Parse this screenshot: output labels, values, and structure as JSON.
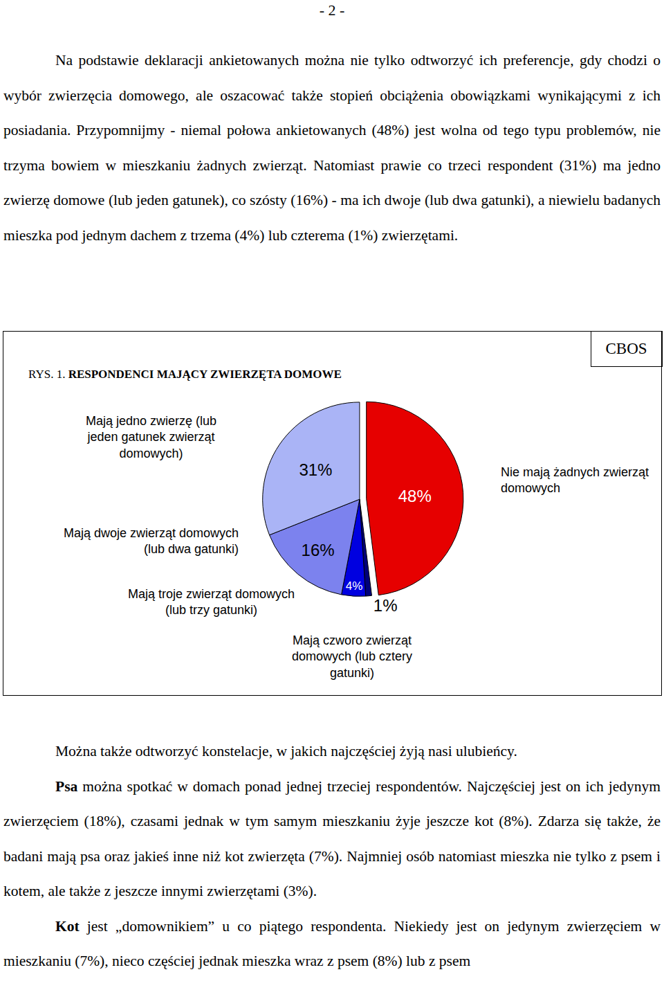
{
  "header": {
    "page_number": "- 2 -"
  },
  "text_before": [
    [
      {
        "text": "Na podstawie deklaracji ankietowanych można nie tylko odtworzyć ich preferencje, gdy chodzi o wybór zwierzęcia domowego, ale oszacować także stopień obciążenia obowiązkami wynikającymi z ich posiadania. Przypomnijmy - niemal połowa ankietowanych (48%) jest wolna od tego typu problemów, nie trzyma bowiem w mieszkaniu żadnych zwierząt. Natomiast prawie co trzeci respondent (31%) ma jedno zwierzę domowe (lub jeden gatunek), co szósty (16%) - ma ich dwoje (lub dwa gatunki), a niewielu badanych mieszka pod jednym dachem z trzema (4%) lub czterema (1%) zwierzętami.",
        "bold": false
      }
    ]
  ],
  "figure": {
    "source": "CBOS",
    "label": "RYS. 1."
  },
  "chart_data": {
    "type": "pie",
    "title": "RESPONDENCI MAJĄCY ZWIERZĘTA DOMOWE",
    "categories": [
      "Nie mają żadnych zwierząt domowych",
      "Mają czworo zwierząt domowych (lub cztery gatunki)",
      "Mają troje zwierząt domowych (lub trzy gatunki)",
      "Mają dwoje zwierząt domowych (lub dwa gatunki)",
      "Mają jedno zwierzę (lub jeden gatunek zwierząt domowych)"
    ],
    "values": [
      48,
      1,
      4,
      16,
      31
    ],
    "value_labels": [
      "48%",
      "1%",
      "4%",
      "16%",
      "31%"
    ],
    "colors": [
      "#e60000",
      "#00007a",
      "#0000e0",
      "#7c82ee",
      "#aab4f6"
    ],
    "data_labels": true
  },
  "text_after": [
    [
      {
        "text": "Można także odtworzyć konstelacje, w jakich najczęściej żyją nasi ulubieńcy.",
        "bold": false
      }
    ],
    [
      {
        "text": "Psa",
        "bold": true
      },
      {
        "text": " można spotkać w domach ponad jednej trzeciej respondentów. Najczęściej jest on ich jedynym zwierzęciem (18%), czasami jednak w tym samym mieszkaniu żyje jeszcze kot (8%). Zdarza się także, że badani mają psa oraz jakieś inne niż kot zwierzęta (7%). Najmniej osób natomiast mieszka nie tylko z psem i kotem, ale także z jeszcze innymi zwierzętami (3%).",
        "bold": false
      }
    ],
    [
      {
        "text": "Kot",
        "bold": true
      },
      {
        "text": " jest „domownikiem” u co piątego respondenta. Niekiedy jest on jedynym zwierzęciem w mieszkaniu (7%), nieco częściej jednak mieszka wraz z psem (8%) lub z psem",
        "bold": false
      }
    ]
  ]
}
